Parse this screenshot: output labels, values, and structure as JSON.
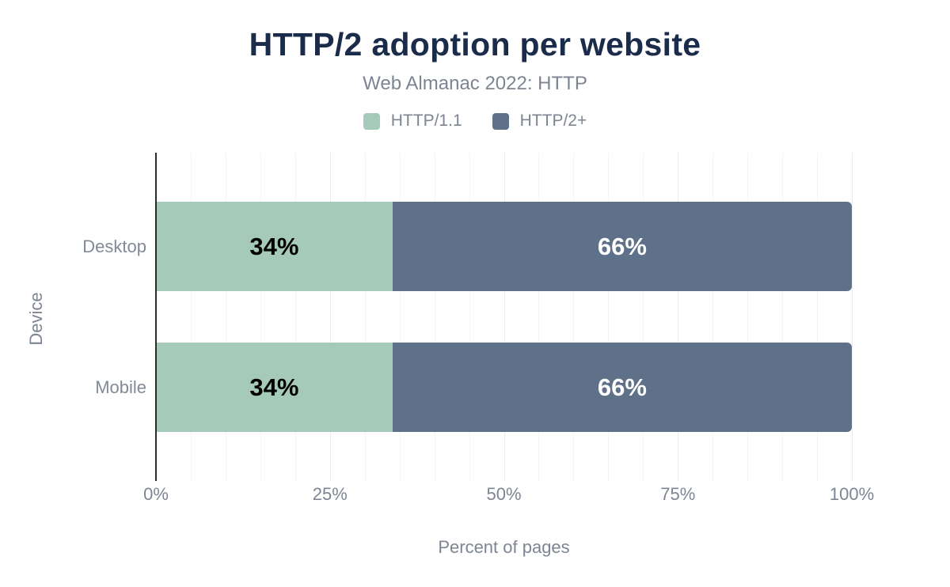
{
  "page": {
    "background": "#ffffff"
  },
  "chart_data": {
    "type": "bar",
    "orientation": "horizontal",
    "stacked": true,
    "title": "HTTP/2 adoption per website",
    "subtitle": "Web Almanac 2022: HTTP",
    "categories": [
      "Desktop",
      "Mobile"
    ],
    "series": [
      {
        "name": "HTTP/1.1",
        "color": "#a6cab9",
        "label_color": "#000000",
        "values": [
          34,
          34
        ],
        "data_labels": [
          "34%",
          "34%"
        ]
      },
      {
        "name": "HTTP/2+",
        "color": "#5f7189",
        "label_color": "#ffffff",
        "values": [
          66,
          66
        ],
        "data_labels": [
          "66%",
          "66%"
        ]
      }
    ],
    "xlabel": "Percent of pages",
    "ylabel": "Device",
    "xlim": [
      0,
      100
    ],
    "x_tick_values": [
      0,
      25,
      50,
      75,
      100
    ],
    "x_tick_labels": [
      "0%",
      "25%",
      "50%",
      "75%",
      "100%"
    ],
    "grid": {
      "minor_step": 5,
      "major_step": 25,
      "minor_color": "#f4f5f6",
      "major_color": "#e9ebef"
    },
    "legend_position": "top",
    "colors": {
      "title": "#1b2b4a",
      "muted_text": "#7d8592",
      "axis_line": "#2b2b2b"
    }
  }
}
